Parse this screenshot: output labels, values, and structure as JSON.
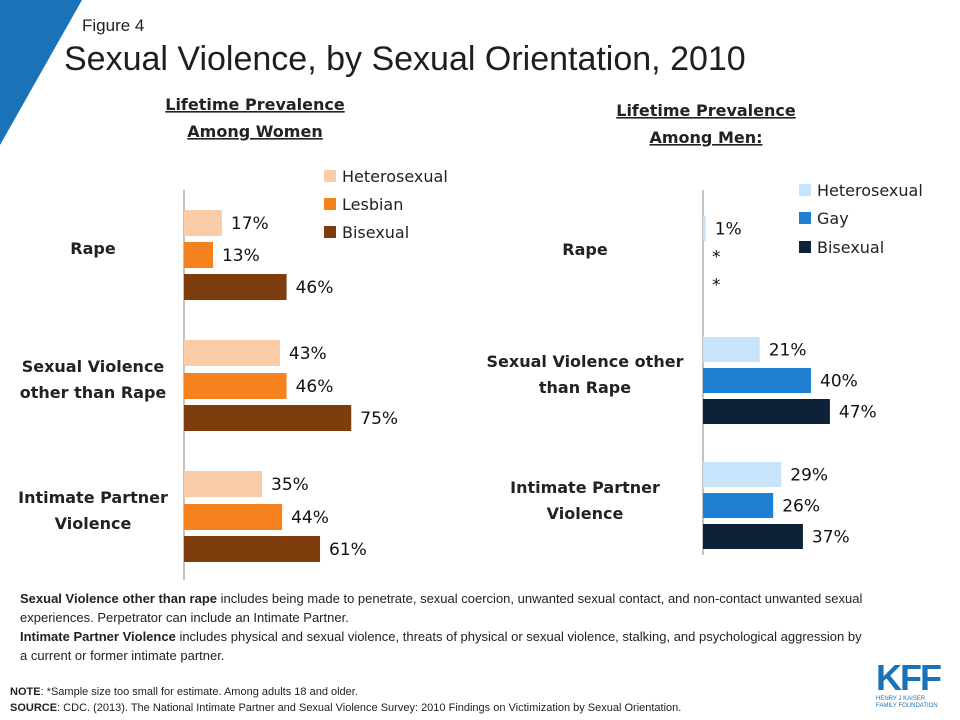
{
  "figure_label": "Figure 4",
  "title": "Sexual Violence, by Sexual Orientation, 2010",
  "colors": {
    "corner": "#1a73b8",
    "women_heterosexual": "#f9cba6",
    "women_lesbian": "#f5821f",
    "women_bisexual": "#7e3d0d",
    "men_heterosexual": "#c6e4fa",
    "men_gay": "#1f7fd1",
    "men_bisexual": "#0d2238",
    "kff": "#1a73b8"
  },
  "chart_data": [
    {
      "type": "bar",
      "orientation": "horizontal",
      "subtitle": [
        "Lifetime Prevalence",
        "Among Women"
      ],
      "categories": [
        "Rape",
        "Sexual Violence other than Rape",
        "Intimate Partner Violence"
      ],
      "category_lines": [
        [
          "Rape"
        ],
        [
          "Sexual Violence",
          "other than Rape"
        ],
        [
          "Intimate Partner",
          "Violence"
        ]
      ],
      "series": [
        {
          "name": "Heterosexual",
          "values": [
            17,
            43,
            35
          ],
          "labels": [
            "17%",
            "43%",
            "35%"
          ]
        },
        {
          "name": "Lesbian",
          "values": [
            13,
            46,
            44
          ],
          "labels": [
            "13%",
            "46%",
            "44%"
          ]
        },
        {
          "name": "Bisexual",
          "values": [
            46,
            75,
            61
          ],
          "labels": [
            "46%",
            "75%",
            "61%"
          ]
        }
      ],
      "xlim": [
        0,
        100
      ],
      "legend": "top-right",
      "grid": false
    },
    {
      "type": "bar",
      "orientation": "horizontal",
      "subtitle": [
        "Lifetime Prevalence",
        "Among Men:"
      ],
      "categories": [
        "Rape",
        "Sexual Violence other than Rape",
        "Intimate Partner Violence"
      ],
      "category_lines": [
        [
          "Rape"
        ],
        [
          "Sexual Violence other",
          "than Rape"
        ],
        [
          "Intimate Partner",
          "Violence"
        ]
      ],
      "series": [
        {
          "name": "Heterosexual",
          "values": [
            1,
            21,
            29
          ],
          "labels": [
            "1%",
            "21%",
            "29%"
          ]
        },
        {
          "name": "Gay",
          "values": [
            null,
            40,
            26
          ],
          "labels": [
            "*",
            "40%",
            "26%"
          ]
        },
        {
          "name": "Bisexual",
          "values": [
            null,
            47,
            37
          ],
          "labels": [
            "*",
            "47%",
            "37%"
          ]
        }
      ],
      "xlim": [
        0,
        100
      ],
      "legend": "top-right",
      "grid": false
    }
  ],
  "definitions": [
    {
      "term": "Sexual Violence other than rape",
      "text": " includes being made to penetrate, sexual coercion, unwanted sexual contact, and non-contact unwanted sexual experiences. Perpetrator can include an Intimate Partner."
    },
    {
      "term": "Intimate Partner Violence",
      "text": " includes physical and sexual violence, threats of physical or sexual violence, stalking, and psychological aggression by a current or former intimate partner."
    }
  ],
  "note_label": "NOTE",
  "note_text": ": *Sample size too small for estimate. Among adults 18 and older.",
  "source_label": "SOURCE",
  "source_text": ": CDC. (2013). The National Intimate Partner and Sexual Violence Survey: 2010 Findings on Victimization by Sexual Orientation.",
  "logo": {
    "mark": "KFF",
    "line1": "HENRY J KAISER",
    "line2": "FAMILY FOUNDATION"
  }
}
